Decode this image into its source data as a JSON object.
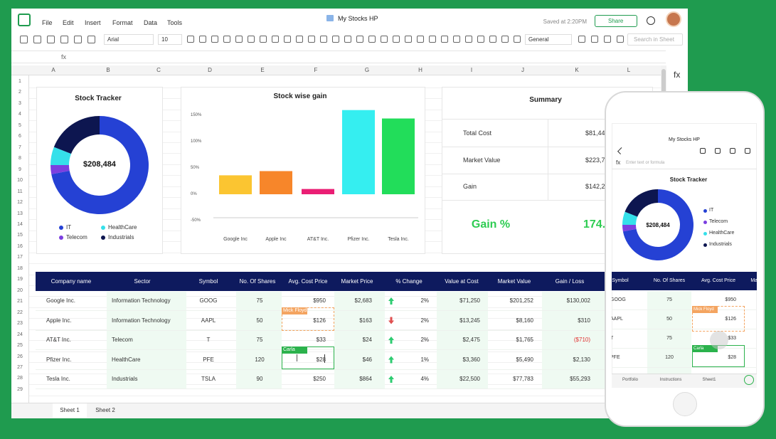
{
  "app": {
    "menu": [
      "File",
      "Edit",
      "Insert",
      "Format",
      "Data",
      "Tools"
    ],
    "doc_title": "My Stocks HP",
    "saved": "Saved at 2:20PM",
    "share": "Share",
    "font": "Arial",
    "font_size": "10",
    "number_format": "General",
    "search_placeholder": "Search in Sheet",
    "fx": "fx"
  },
  "grid": {
    "columns": [
      "A",
      "B",
      "C",
      "D",
      "E",
      "F",
      "G",
      "H",
      "I",
      "J",
      "K",
      "L"
    ],
    "rows": [
      1,
      2,
      3,
      4,
      5,
      6,
      7,
      8,
      9,
      10,
      11,
      12,
      13,
      14,
      15,
      16,
      17,
      18,
      19,
      20,
      21,
      22,
      23,
      24,
      25,
      26,
      27,
      28,
      29
    ]
  },
  "chart_data": [
    {
      "type": "pie",
      "title": "Stock Tracker",
      "center_label": "$208,484",
      "categories": [
        "IT",
        "Telecom",
        "HealthCare",
        "Industrials"
      ],
      "values": [
        72,
        3,
        6,
        19
      ],
      "colors": [
        "#2541d4",
        "#7b3fe0",
        "#35e0ea",
        "#0d1650"
      ]
    },
    {
      "type": "bar",
      "title": "Stock wise gain",
      "categories": [
        "Google Inc",
        "Apple Inc",
        "AT&T Inc.",
        "Pfizer Inc.",
        "Tesla Inc."
      ],
      "values": [
        36,
        44,
        10,
        160,
        144
      ],
      "colors": [
        "#fbc531",
        "#f7862a",
        "#ea1e74",
        "#35eef0",
        "#22dd5a"
      ],
      "ylim": [
        -50,
        165
      ],
      "yticks": [
        {
          "value": 150,
          "label": "150%"
        },
        {
          "value": 100,
          "label": "100%"
        },
        {
          "value": 50,
          "label": "50%"
        },
        {
          "value": 0,
          "label": "0%"
        },
        {
          "value": -50,
          "label": "-50%"
        }
      ]
    }
  ],
  "summary": {
    "title": "Summary",
    "rows": [
      {
        "label": "Total Cost",
        "value": "$81,44"
      },
      {
        "label": "Market Value",
        "value": "$223,7"
      },
      {
        "label": "Gain",
        "value": "$142,2"
      }
    ],
    "gain_label": "Gain %",
    "gain_value": "174."
  },
  "table": {
    "header": [
      "Company name",
      "Sector",
      "Symbol",
      "No. Of Shares",
      "Avg. Cost Price",
      "Market Price",
      "% Change",
      "Value at Cost",
      "Market Value",
      "Gain / Loss"
    ],
    "rows": [
      [
        "Google Inc.",
        "Information Technology",
        "GOOG",
        75,
        "$950",
        "$2,683",
        "2%",
        "$71,250",
        "$201,252",
        "$130,002"
      ],
      [
        "Apple Inc.",
        "Information Technology",
        "AAPL",
        50,
        "$126",
        "$163",
        "2%",
        "$13,245",
        "$8,160",
        "$310"
      ],
      [
        "AT&T Inc.",
        "Telecom",
        "T",
        75,
        "$33",
        "$24",
        "2%",
        "$2,475",
        "$1,765",
        "($710)"
      ],
      [
        "Pfizer Inc.",
        "HealthCare",
        "PFE",
        120,
        "$28",
        "$46",
        "1%",
        "$3,360",
        "$5,490",
        "$2,130"
      ],
      [
        "Tesla Inc.",
        "Industrials",
        "TSLA",
        90,
        "$250",
        "$864",
        "4%",
        "$22,500",
        "$77,783",
        "$55,293"
      ]
    ],
    "change_direction": [
      "up",
      "down",
      "up",
      "up",
      "up"
    ]
  },
  "collaborators": [
    "Mick Floyd",
    "Carla"
  ],
  "sheets": [
    "Sheet 1",
    "Sheet 2"
  ],
  "phone": {
    "doc_title": "My Stocks HP",
    "formula_placeholder": "Enter text or formula",
    "fx": "fx",
    "tabs": [
      "Portfolio",
      "Instructions",
      "Sheet1"
    ]
  }
}
